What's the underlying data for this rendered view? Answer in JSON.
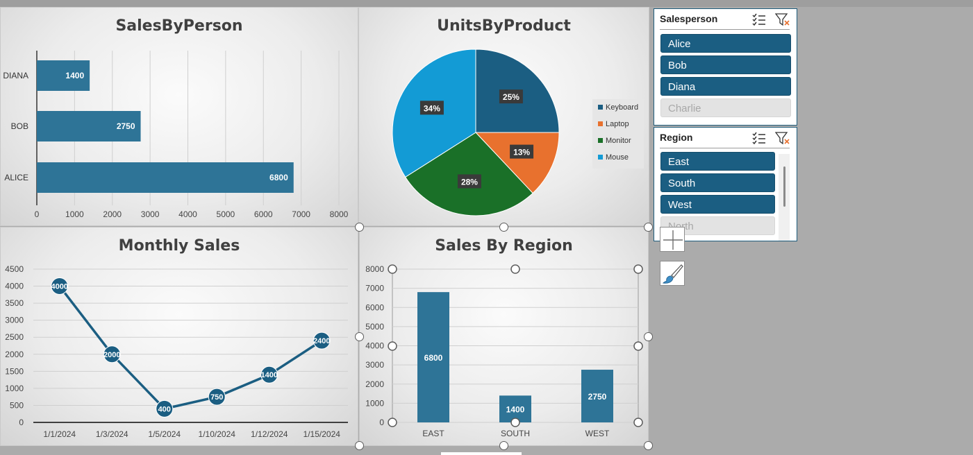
{
  "charts": {
    "sales_by_person": {
      "title": "SalesByPerson",
      "type": "bar",
      "categories": [
        "DIANA",
        "BOB",
        "ALICE"
      ],
      "values": [
        1400,
        2750,
        6800
      ],
      "value_labels": [
        "1400",
        "2750",
        "6800"
      ],
      "xlim": [
        0,
        8000
      ],
      "x_ticks": [
        "0",
        "1000",
        "2000",
        "3000",
        "4000",
        "5000",
        "6000",
        "7000",
        "8000"
      ]
    },
    "units_by_product": {
      "title": "UnitsByProduct",
      "type": "pie",
      "labels": [
        "Keyboard",
        "Laptop",
        "Monitor",
        "Mouse"
      ],
      "values": [
        25,
        13,
        28,
        34
      ],
      "value_labels": [
        "25%",
        "13%",
        "28%",
        "34%"
      ],
      "colors": [
        "#1b5e82",
        "#e8712e",
        "#1a7028",
        "#139bd5"
      ]
    },
    "monthly_sales": {
      "title": "Monthly Sales",
      "type": "line",
      "x": [
        "1/1/2024",
        "1/3/2024",
        "1/5/2024",
        "1/10/2024",
        "1/12/2024",
        "1/15/2024"
      ],
      "values": [
        4000,
        2000,
        400,
        750,
        1400,
        2400
      ],
      "value_labels": [
        "4000",
        "2000",
        "400",
        "750",
        "1400",
        "2400"
      ],
      "ylim": [
        0,
        4500
      ],
      "y_ticks": [
        "0",
        "500",
        "1000",
        "1500",
        "2000",
        "2500",
        "3000",
        "3500",
        "4000",
        "4500"
      ]
    },
    "sales_by_region": {
      "title": "Sales By Region",
      "type": "bar",
      "categories": [
        "EAST",
        "SOUTH",
        "WEST"
      ],
      "values": [
        6800,
        1400,
        2750
      ],
      "value_labels": [
        "6800",
        "1400",
        "2750"
      ],
      "ylim": [
        0,
        8000
      ],
      "y_ticks": [
        "0",
        "1000",
        "2000",
        "3000",
        "4000",
        "5000",
        "6000",
        "7000",
        "8000"
      ]
    }
  },
  "chart_data": [
    {
      "type": "bar",
      "title": "SalesByPerson",
      "categories": [
        "DIANA",
        "BOB",
        "ALICE"
      ],
      "values": [
        1400,
        2750,
        6800
      ],
      "xlim": [
        0,
        8000
      ]
    },
    {
      "type": "pie",
      "title": "UnitsByProduct",
      "labels": [
        "Keyboard",
        "Laptop",
        "Monitor",
        "Mouse"
      ],
      "values": [
        25,
        13,
        28,
        34
      ]
    },
    {
      "type": "line",
      "title": "Monthly Sales",
      "x": [
        "1/1/2024",
        "1/3/2024",
        "1/5/2024",
        "1/10/2024",
        "1/12/2024",
        "1/15/2024"
      ],
      "values": [
        4000,
        2000,
        400,
        750,
        1400,
        2400
      ],
      "ylim": [
        0,
        4500
      ]
    },
    {
      "type": "bar",
      "title": "Sales By Region",
      "categories": [
        "EAST",
        "SOUTH",
        "WEST"
      ],
      "values": [
        6800,
        1400,
        2750
      ],
      "ylim": [
        0,
        8000
      ]
    }
  ],
  "slicers": {
    "salesperson": {
      "title": "Salesperson",
      "items": [
        {
          "label": "Alice",
          "selected": true
        },
        {
          "label": "Bob",
          "selected": true
        },
        {
          "label": "Diana",
          "selected": true
        },
        {
          "label": "Charlie",
          "selected": false
        }
      ]
    },
    "region": {
      "title": "Region",
      "items": [
        {
          "label": "East",
          "selected": true
        },
        {
          "label": "South",
          "selected": true
        },
        {
          "label": "West",
          "selected": true
        },
        {
          "label": "North",
          "selected": false
        }
      ]
    }
  },
  "tools": {
    "add_icon": "plus-icon",
    "style_icon": "paintbrush-icon"
  },
  "colors": {
    "accent": "#1b5e82",
    "bar_fill": "#2e7497",
    "line": "#1b5e82",
    "region_bar": "#2e7497",
    "filter_clear": "#e8712e"
  }
}
